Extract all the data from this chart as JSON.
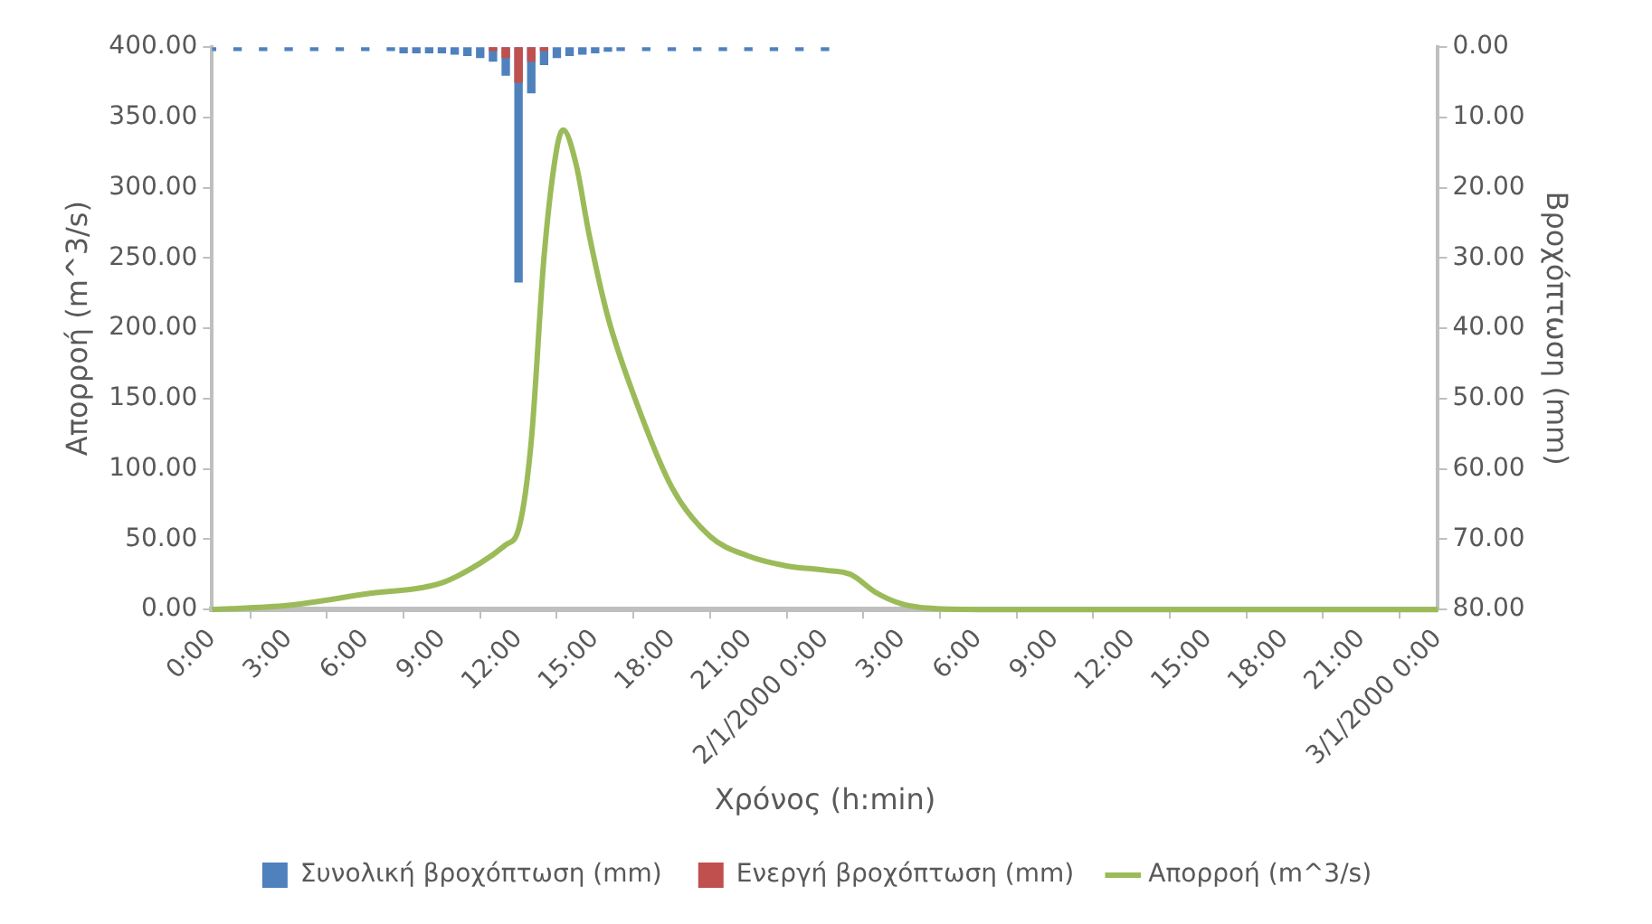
{
  "chart_data": {
    "type": "bar",
    "xlabel": "Χρόνος (h:min)",
    "ylabel": "Απορροή (m^3/s)",
    "y2label": "Βροχόπτωση (mm)",
    "xlim": [
      "2000-01-01T00:00",
      "2000-01-03T00:00"
    ],
    "xticks": [
      {
        "value": "2000-01-01T00:00",
        "label": "0:00"
      },
      {
        "value": "2000-01-01T03:00",
        "label": "3:00"
      },
      {
        "value": "2000-01-01T06:00",
        "label": "6:00"
      },
      {
        "value": "2000-01-01T09:00",
        "label": "9:00"
      },
      {
        "value": "2000-01-01T12:00",
        "label": "12:00"
      },
      {
        "value": "2000-01-01T15:00",
        "label": "15:00"
      },
      {
        "value": "2000-01-01T18:00",
        "label": "18:00"
      },
      {
        "value": "2000-01-01T21:00",
        "label": "21:00"
      },
      {
        "value": "2000-01-02T00:00",
        "label": "2/1/2000 0:00"
      },
      {
        "value": "2000-01-02T03:00",
        "label": "3:00"
      },
      {
        "value": "2000-01-02T06:00",
        "label": "6:00"
      },
      {
        "value": "2000-01-02T09:00",
        "label": "9:00"
      },
      {
        "value": "2000-01-02T12:00",
        "label": "12:00"
      },
      {
        "value": "2000-01-02T15:00",
        "label": "15:00"
      },
      {
        "value": "2000-01-02T18:00",
        "label": "18:00"
      },
      {
        "value": "2000-01-02T21:00",
        "label": "21:00"
      },
      {
        "value": "2000-01-03T00:00",
        "label": "3/1/2000 0:00"
      }
    ],
    "ylim": [
      0,
      400
    ],
    "yticks": [
      {
        "value": 0,
        "label": "0.00"
      },
      {
        "value": 50,
        "label": "50.00"
      },
      {
        "value": 100,
        "label": "100.00"
      },
      {
        "value": 150,
        "label": "150.00"
      },
      {
        "value": 200,
        "label": "200.00"
      },
      {
        "value": 250,
        "label": "250.00"
      },
      {
        "value": 300,
        "label": "300.00"
      },
      {
        "value": 350,
        "label": "350.00"
      },
      {
        "value": 400,
        "label": "400.00"
      }
    ],
    "y2lim": [
      80,
      0
    ],
    "y2ticks": [
      {
        "value": 0,
        "label": "0.00"
      },
      {
        "value": 10,
        "label": "10.00"
      },
      {
        "value": 20,
        "label": "20.00"
      },
      {
        "value": 30,
        "label": "30.00"
      },
      {
        "value": 40,
        "label": "40.00"
      },
      {
        "value": 50,
        "label": "50.00"
      },
      {
        "value": 60,
        "label": "60.00"
      },
      {
        "value": 70,
        "label": "70.00"
      },
      {
        "value": 80,
        "label": "80.00"
      }
    ],
    "grid": false,
    "legend": "bottom",
    "series": [
      {
        "name": "Συνολική βροχόπτωση (mm)",
        "axis": "y2",
        "color": "#4f81bd",
        "x": [
          "2000-01-01T00:00",
          "2000-01-01T01:00",
          "2000-01-01T02:00",
          "2000-01-01T03:00",
          "2000-01-01T04:00",
          "2000-01-01T05:00",
          "2000-01-01T06:00",
          "2000-01-01T07:00",
          "2000-01-01T07:30",
          "2000-01-01T08:00",
          "2000-01-01T08:30",
          "2000-01-01T09:00",
          "2000-01-01T09:30",
          "2000-01-01T10:00",
          "2000-01-01T10:30",
          "2000-01-01T11:00",
          "2000-01-01T11:30",
          "2000-01-01T12:00",
          "2000-01-01T12:30",
          "2000-01-01T13:00",
          "2000-01-01T13:30",
          "2000-01-01T14:00",
          "2000-01-01T14:30",
          "2000-01-01T15:00",
          "2000-01-01T15:30",
          "2000-01-01T16:00",
          "2000-01-01T17:00",
          "2000-01-01T18:00",
          "2000-01-01T19:00",
          "2000-01-01T20:00",
          "2000-01-01T21:00",
          "2000-01-01T22:00",
          "2000-01-01T23:00",
          "2000-01-02T00:00"
        ],
        "values": [
          0.5,
          0.5,
          0.5,
          0.5,
          0.5,
          0.5,
          0.5,
          0.5,
          0.8,
          0.8,
          0.8,
          0.8,
          1,
          1.2,
          1.5,
          2,
          4,
          33.4,
          6.5,
          2.5,
          1.5,
          1.2,
          1,
          0.8,
          0.6,
          0.5,
          0.5,
          0.5,
          0.5,
          0.5,
          0.5,
          0.5,
          0.5,
          0.5
        ]
      },
      {
        "name": "Ενεργή βροχόπτωση (mm)",
        "axis": "y2",
        "color": "#c0504d",
        "x": [
          "2000-01-01T11:00",
          "2000-01-01T11:30",
          "2000-01-01T12:00",
          "2000-01-01T12:30",
          "2000-01-01T13:00"
        ],
        "values": [
          0.5,
          1.5,
          5,
          2,
          0.5
        ]
      },
      {
        "name": "Απορροή (m^3/s)",
        "type": "line",
        "color": "#9bbb59",
        "x": [
          "2000-01-01T00:00",
          "2000-01-01T03:00",
          "2000-01-01T06:00",
          "2000-01-01T09:00",
          "2000-01-01T10:30",
          "2000-01-01T11:30",
          "2000-01-01T12:00",
          "2000-01-01T12:30",
          "2000-01-01T13:00",
          "2000-01-01T13:30",
          "2000-01-01T13:45",
          "2000-01-01T14:15",
          "2000-01-01T14:45",
          "2000-01-01T15:30",
          "2000-01-01T16:30",
          "2000-01-01T18:00",
          "2000-01-01T19:30",
          "2000-01-01T21:00",
          "2000-01-01T22:30",
          "2000-01-02T00:00",
          "2000-01-02T01:00",
          "2000-01-02T02:00",
          "2000-01-02T03:00",
          "2000-01-02T04:00",
          "2000-01-02T06:00",
          "2000-01-03T00:00"
        ],
        "values": [
          0,
          3,
          11,
          19,
          33,
          46,
          57,
          120,
          251,
          328,
          341,
          317,
          268,
          208,
          153,
          87,
          52,
          38,
          31,
          28,
          25,
          12,
          4,
          1,
          0,
          0
        ]
      }
    ]
  }
}
